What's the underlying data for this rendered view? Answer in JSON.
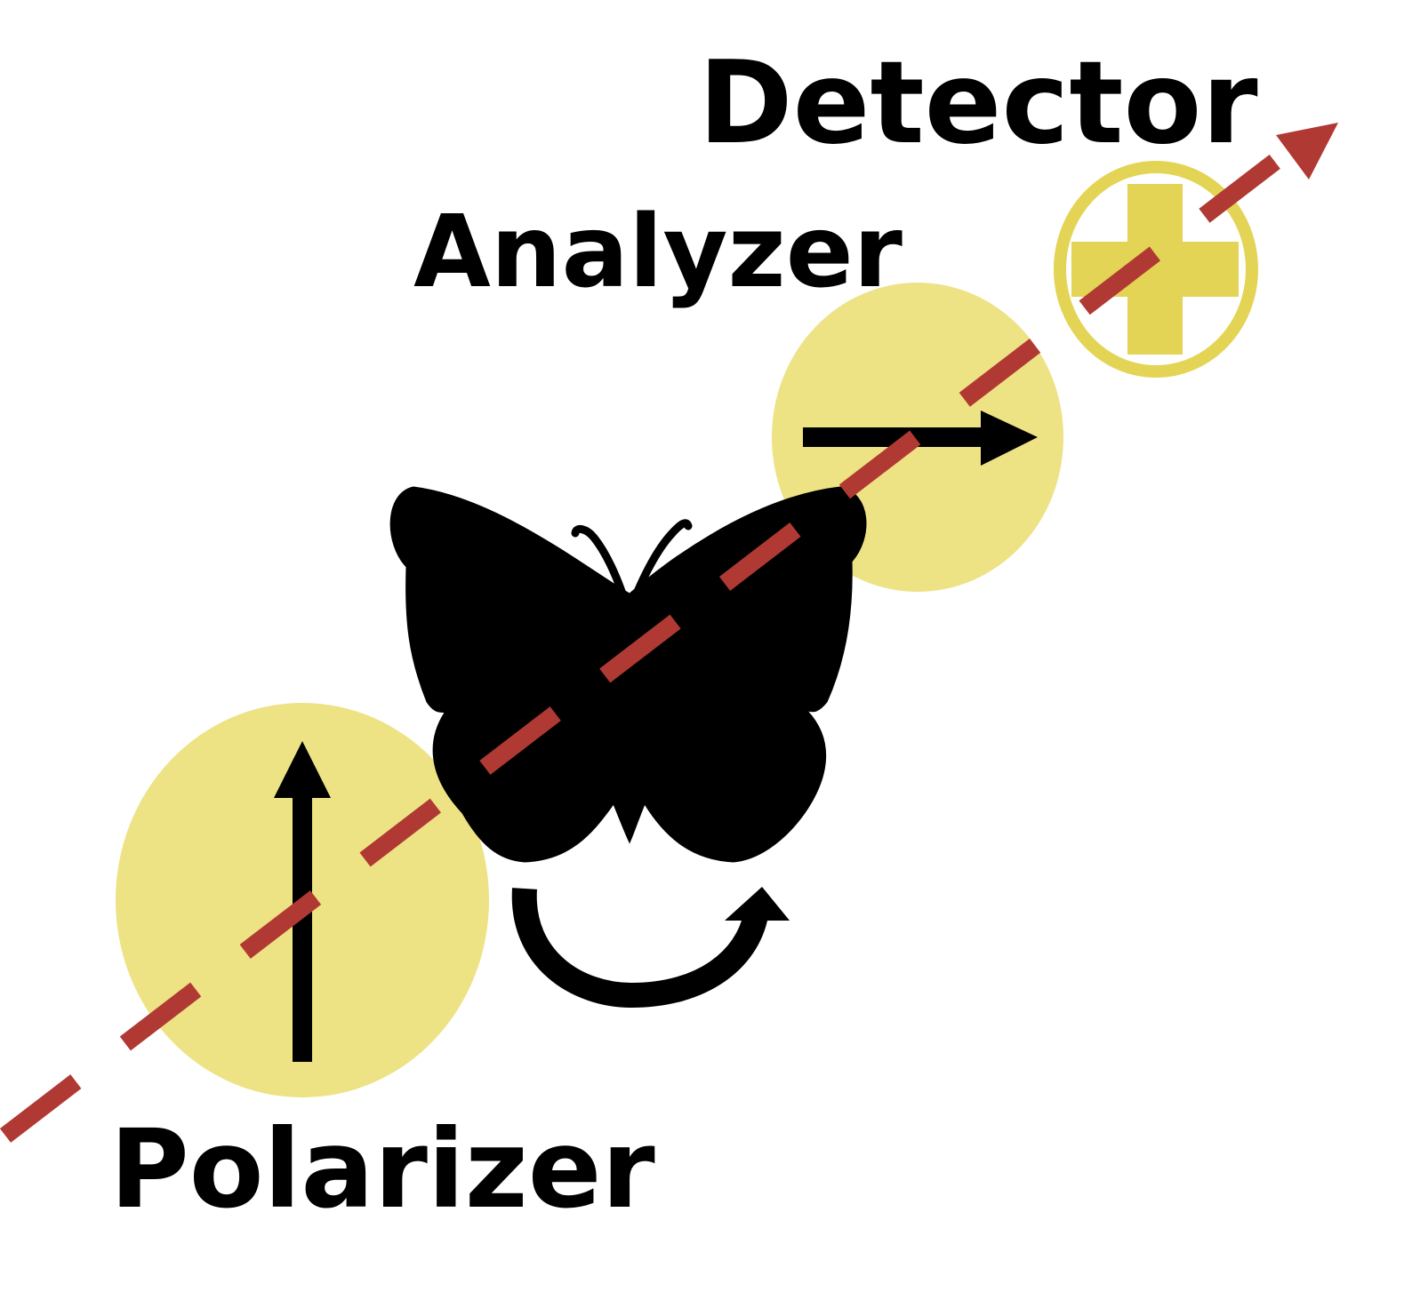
{
  "labels": {
    "detector": "Detector",
    "analyzer": "Analyzer",
    "polarizer": "Polarizer"
  },
  "colors": {
    "filter_fill": "#ede284",
    "detector_ring": "#e3d455",
    "beam": "#b03a33",
    "ink": "#000000"
  },
  "icons": {
    "specimen": "butterfly-icon",
    "rotation": "curved-rotation-arrow-icon",
    "detector": "crosshair-plus-icon"
  }
}
